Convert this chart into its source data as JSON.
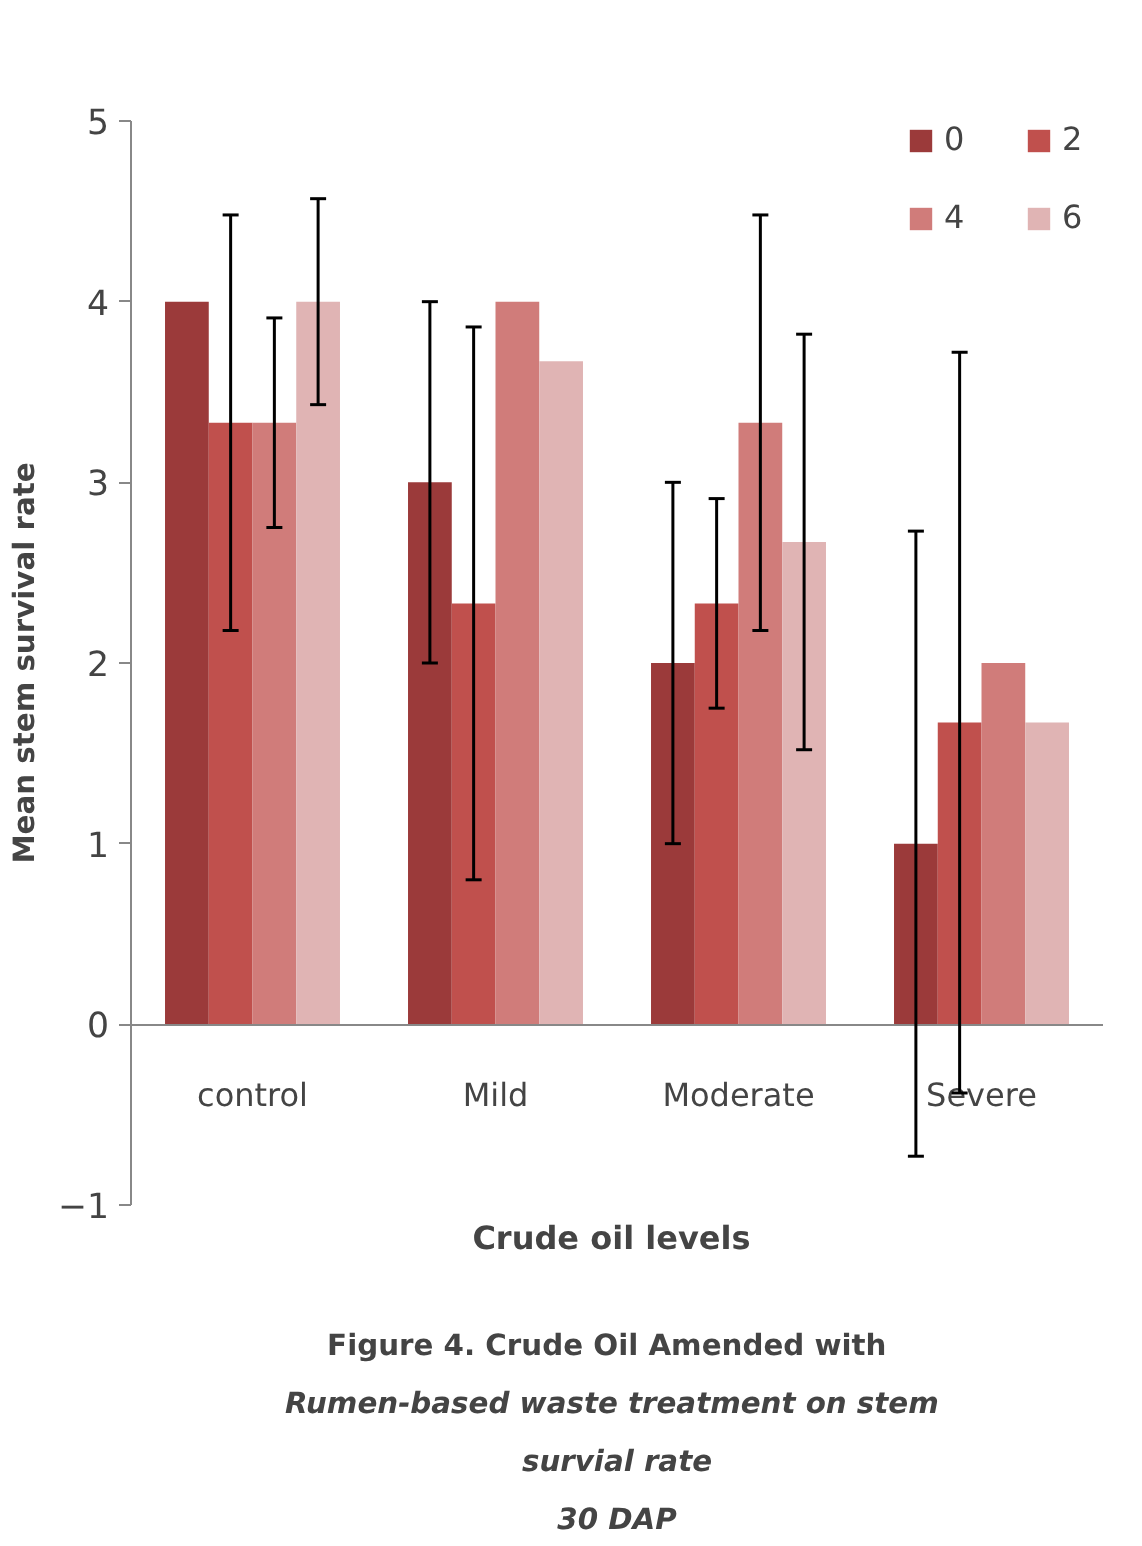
{
  "chart_data": {
    "type": "bar",
    "title": "Figure 4.  Crude Oil Amended  with Rumen-based waste treatment  on stem survial rate",
    "subtitle": "30 DAP",
    "xlabel": "Crude oil  levels",
    "ylabel": "Mean stem survival rate",
    "categories": [
      "control",
      "Mild",
      "Moderate",
      "Severe"
    ],
    "series": [
      {
        "name": "0",
        "color": "#9b3a3a",
        "values": [
          4,
          3,
          2,
          1
        ],
        "errors": [
          null,
          1,
          1,
          1.73
        ]
      },
      {
        "name": "2",
        "color": "#c0504d",
        "values": [
          3.33,
          2.33,
          2.33,
          1.67
        ],
        "errors": [
          1.15,
          1.53,
          0.58,
          2.05
        ]
      },
      {
        "name": "4",
        "color": "#d07c7a",
        "values": [
          3.33,
          4,
          3.33,
          2
        ],
        "errors": [
          0.58,
          null,
          1.15,
          null
        ]
      },
      {
        "name": "6",
        "color": "#e0b4b4",
        "values": [
          4,
          3.67,
          2.67,
          1.67
        ],
        "errors": [
          0.57,
          null,
          1.15,
          null
        ]
      }
    ],
    "ylim": [
      -1,
      5
    ],
    "yticks": [
      -1,
      0,
      1,
      2,
      3,
      4,
      5
    ],
    "grid": false,
    "legend": "top right"
  }
}
